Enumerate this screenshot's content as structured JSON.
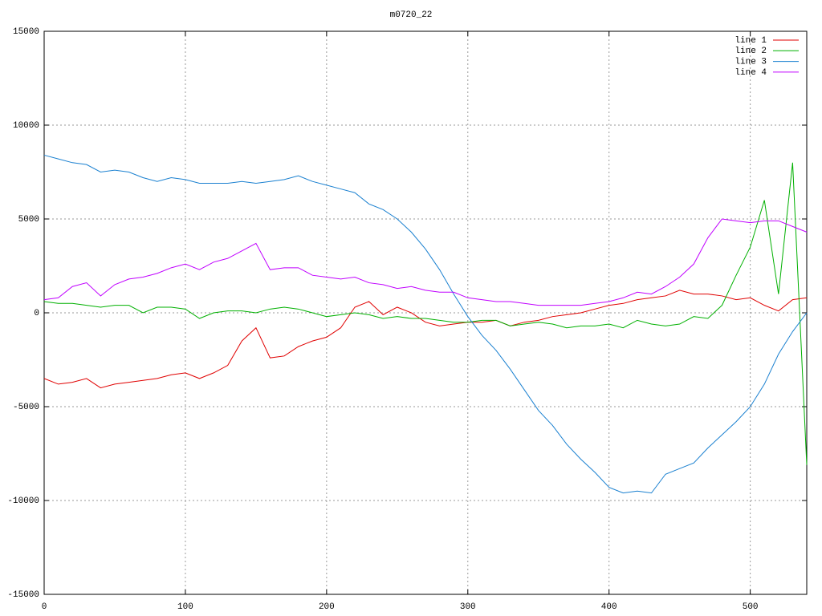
{
  "chart_data": {
    "type": "line",
    "title": "m0720_22",
    "x": [
      0,
      10,
      20,
      30,
      40,
      50,
      60,
      70,
      80,
      90,
      100,
      110,
      120,
      130,
      140,
      150,
      160,
      170,
      180,
      190,
      200,
      210,
      220,
      230,
      240,
      250,
      260,
      270,
      280,
      290,
      300,
      310,
      320,
      330,
      340,
      350,
      360,
      370,
      380,
      390,
      400,
      410,
      420,
      430,
      440,
      450,
      460,
      470,
      480,
      490,
      500,
      510,
      520,
      530,
      540
    ],
    "series": [
      {
        "name": "line 1",
        "color": "#e00000",
        "values": [
          -3500,
          -3800,
          -3700,
          -3500,
          -4000,
          -3800,
          -3700,
          -3600,
          -3500,
          -3300,
          -3200,
          -3500,
          -3200,
          -2800,
          -1500,
          -800,
          -2400,
          -2300,
          -1800,
          -1500,
          -1300,
          -800,
          300,
          600,
          -100,
          300,
          0,
          -500,
          -700,
          -600,
          -500,
          -500,
          -400,
          -700,
          -500,
          -400,
          -200,
          -100,
          0,
          200,
          400,
          500,
          700,
          800,
          900,
          1200,
          1000,
          1000,
          900,
          700,
          800,
          400,
          100,
          700,
          800
        ]
      },
      {
        "name": "line 2",
        "color": "#00b000",
        "values": [
          600,
          500,
          500,
          400,
          300,
          400,
          400,
          0,
          300,
          300,
          200,
          -300,
          0,
          100,
          100,
          0,
          200,
          300,
          200,
          0,
          -200,
          -100,
          0,
          -100,
          -300,
          -200,
          -300,
          -300,
          -400,
          -500,
          -500,
          -400,
          -400,
          -700,
          -600,
          -500,
          -600,
          -800,
          -700,
          -700,
          -600,
          -800,
          -400,
          -600,
          -700,
          -600,
          -200,
          -300,
          400,
          2000,
          3500,
          6000,
          1000,
          8000,
          -8100
        ]
      },
      {
        "name": "line 3",
        "color": "#1a80d0",
        "values": [
          8400,
          8200,
          8000,
          7900,
          7500,
          7600,
          7500,
          7200,
          7000,
          7200,
          7100,
          6900,
          6900,
          6900,
          7000,
          6900,
          7000,
          7100,
          7300,
          7000,
          6800,
          6600,
          6400,
          5800,
          5500,
          5000,
          4300,
          3400,
          2300,
          1000,
          -200,
          -1200,
          -2000,
          -3000,
          -4100,
          -5200,
          -6000,
          -7000,
          -7800,
          -8500,
          -9300,
          -9600,
          -9500,
          -9600,
          -8600,
          -8300,
          -8000,
          -7200,
          -6500,
          -5800,
          -5000,
          -3800,
          -2200,
          -1000,
          0
        ]
      },
      {
        "name": "line 4",
        "color": "#c000ff",
        "values": [
          700,
          800,
          1400,
          1600,
          900,
          1500,
          1800,
          1900,
          2100,
          2400,
          2600,
          2300,
          2700,
          2900,
          3300,
          3700,
          2300,
          2400,
          2400,
          2000,
          1900,
          1800,
          1900,
          1600,
          1500,
          1300,
          1400,
          1200,
          1100,
          1100,
          800,
          700,
          600,
          600,
          500,
          400,
          400,
          400,
          400,
          500,
          600,
          800,
          1100,
          1000,
          1400,
          1900,
          2600,
          4000,
          5000,
          4900,
          4800,
          4900,
          4900,
          4600,
          4300
        ]
      }
    ],
    "xlim": [
      0,
      540
    ],
    "xticks": [
      0,
      100,
      200,
      300,
      400,
      500
    ],
    "ylim": [
      -15000,
      15000
    ],
    "yticks": [
      -15000,
      -10000,
      -5000,
      0,
      5000,
      10000,
      15000
    ],
    "grid": true,
    "legend": "upper right"
  }
}
